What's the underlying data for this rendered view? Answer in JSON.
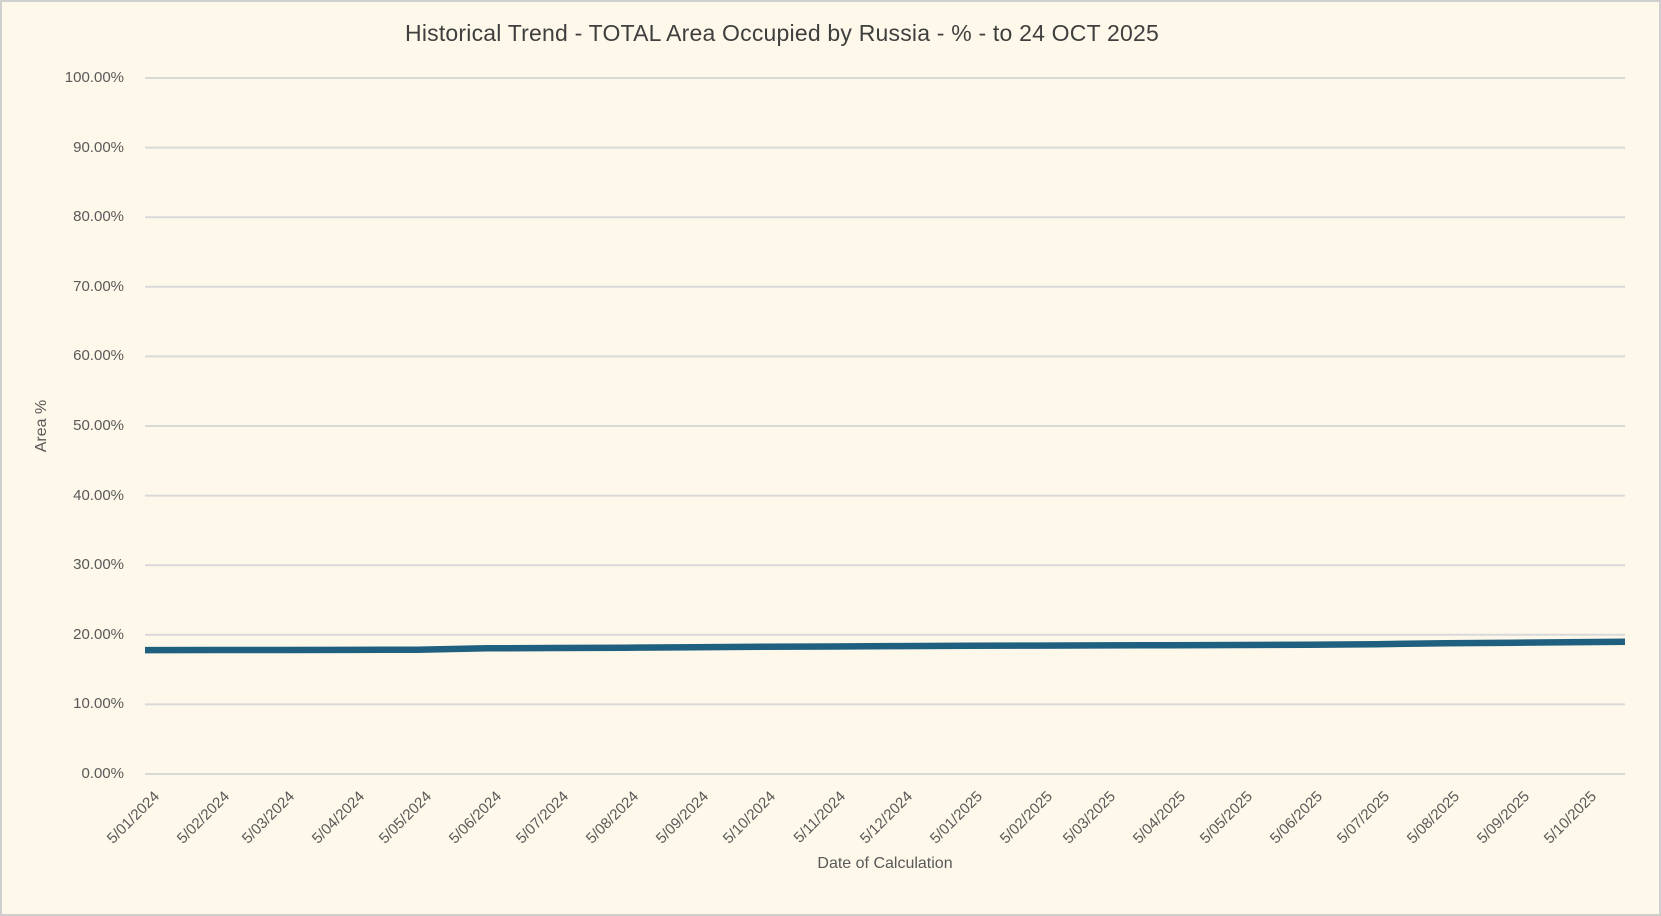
{
  "chart": {
    "title": "Historical Trend - TOTAL Area Occupied by Russia - % - to 24 OCT 2025",
    "xlabel": "Date of Calculation",
    "ylabel": "Area %"
  },
  "chart_data": {
    "type": "line",
    "title": "Historical Trend - TOTAL Area Occupied by Russia - % - to 24 OCT 2025",
    "xlabel": "Date of Calculation",
    "ylabel": "Area %",
    "ylim": [
      0,
      100
    ],
    "y_tick_step": 10,
    "y_tick_labels": [
      "0.00%",
      "10.00%",
      "20.00%",
      "30.00%",
      "40.00%",
      "50.00%",
      "60.00%",
      "70.00%",
      "80.00%",
      "90.00%",
      "100.00%"
    ],
    "x_tick_labels": [
      "5/01/2024",
      "5/02/2024",
      "5/03/2024",
      "5/04/2024",
      "5/05/2024",
      "5/06/2024",
      "5/07/2024",
      "5/08/2024",
      "5/09/2024",
      "5/10/2024",
      "5/11/2024",
      "5/12/2024",
      "5/01/2025",
      "5/02/2025",
      "5/03/2025",
      "5/04/2025",
      "5/05/2025",
      "5/06/2025",
      "5/07/2025",
      "5/08/2025",
      "5/09/2025",
      "5/10/2025"
    ],
    "grid": true,
    "legend": false,
    "date_format": "D/MM/YYYY",
    "colors": {
      "line": "#1f5f7f",
      "gridline": "#d9d9d9",
      "background": "#fdf8e9",
      "text": "#595959",
      "title_text": "#3f3f3f"
    },
    "series": [
      {
        "name": "TOTAL Area Occupied by Russia %",
        "points": [
          {
            "date": "5/01/2024",
            "value": 17.8
          },
          {
            "date": "5/02/2024",
            "value": 17.81
          },
          {
            "date": "5/03/2024",
            "value": 17.82
          },
          {
            "date": "5/04/2024",
            "value": 17.83
          },
          {
            "date": "5/05/2024",
            "value": 17.86
          },
          {
            "date": "5/06/2024",
            "value": 18.06
          },
          {
            "date": "5/07/2024",
            "value": 18.1
          },
          {
            "date": "5/08/2024",
            "value": 18.14
          },
          {
            "date": "5/09/2024",
            "value": 18.2
          },
          {
            "date": "5/10/2024",
            "value": 18.28
          },
          {
            "date": "5/11/2024",
            "value": 18.32
          },
          {
            "date": "5/12/2024",
            "value": 18.38
          },
          {
            "date": "5/01/2025",
            "value": 18.42
          },
          {
            "date": "5/02/2025",
            "value": 18.45
          },
          {
            "date": "5/03/2025",
            "value": 18.47
          },
          {
            "date": "5/04/2025",
            "value": 18.5
          },
          {
            "date": "5/05/2025",
            "value": 18.53
          },
          {
            "date": "5/06/2025",
            "value": 18.58
          },
          {
            "date": "5/07/2025",
            "value": 18.65
          },
          {
            "date": "5/08/2025",
            "value": 18.78
          },
          {
            "date": "5/09/2025",
            "value": 18.87
          },
          {
            "date": "5/10/2025",
            "value": 18.95
          },
          {
            "date": "24/10/2025",
            "value": 19.0
          }
        ]
      }
    ]
  }
}
